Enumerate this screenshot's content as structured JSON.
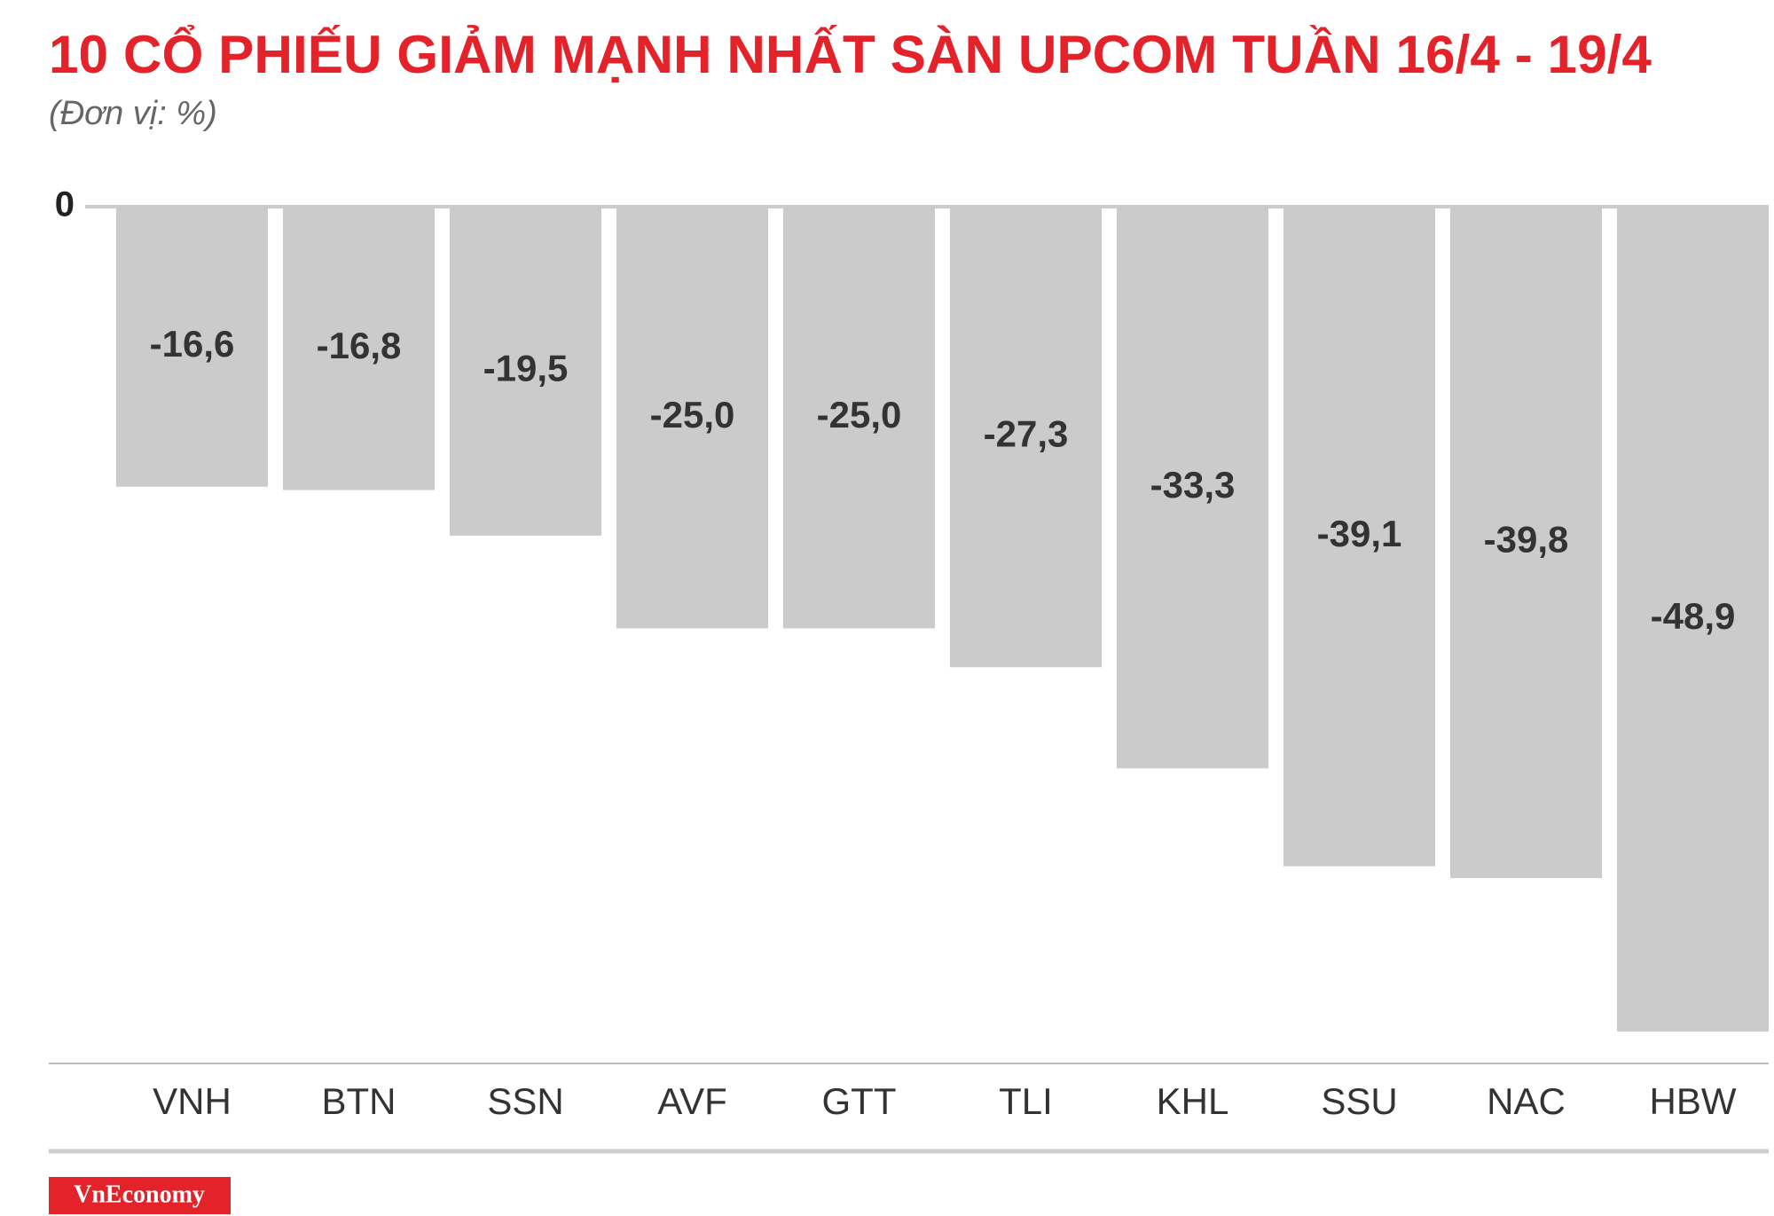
{
  "chart_data": {
    "type": "bar",
    "title": "10 CỔ PHIẾU GIẢM MẠNH NHẤT SÀN UPCOM TUẦN 16/4 - 19/4",
    "subtitle": "(Đơn vị: %)",
    "categories": [
      "VNH",
      "BTN",
      "SSN",
      "AVF",
      "GTT",
      "TLI",
      "KHL",
      "SSU",
      "NAC",
      "HBW"
    ],
    "values": [
      -16.6,
      -16.8,
      -19.5,
      -25.0,
      -25.0,
      -27.3,
      -33.3,
      -39.1,
      -39.8,
      -48.9
    ],
    "value_labels": [
      "-16,6",
      "-16,8",
      "-19,5",
      "-25,0",
      "-25,0",
      "-27,3",
      "-33,3",
      "-39,1",
      "-39,8",
      "-48,9"
    ],
    "color": "#cccbcc",
    "ylim": [
      -50,
      0
    ],
    "yticks": [
      0
    ],
    "brand": "VnEconomy"
  }
}
